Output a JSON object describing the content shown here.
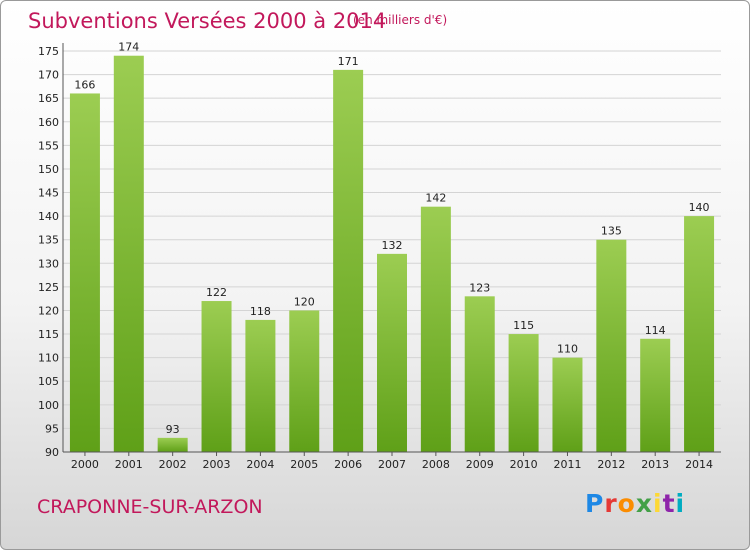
{
  "header": {
    "title": "Subventions Versées 2000 à 2014",
    "subtitle": "(en milliers d'€)"
  },
  "footer": {
    "place": "CRAPONNE-SUR-ARZON",
    "logo": "Proxiti"
  },
  "colors": {
    "accent": "#c2185b",
    "bar_top": "#9ccd52",
    "bar_bottom": "#5fa018"
  },
  "chart_data": {
    "type": "bar",
    "title": "Subventions Versées 2000 à 2014",
    "subtitle": "(en milliers d'€)",
    "xlabel": "",
    "ylabel": "",
    "categories": [
      "2000",
      "2001",
      "2002",
      "2003",
      "2004",
      "2005",
      "2006",
      "2007",
      "2008",
      "2009",
      "2010",
      "2011",
      "2012",
      "2013",
      "2014"
    ],
    "values": [
      166,
      174,
      93,
      122,
      118,
      120,
      171,
      132,
      142,
      123,
      115,
      110,
      135,
      114,
      140
    ],
    "ylim": [
      90,
      175
    ],
    "yticks": [
      90,
      95,
      100,
      105,
      110,
      115,
      120,
      125,
      130,
      135,
      140,
      145,
      150,
      155,
      160,
      165,
      170,
      175
    ],
    "grid": true,
    "data_labels": true
  }
}
